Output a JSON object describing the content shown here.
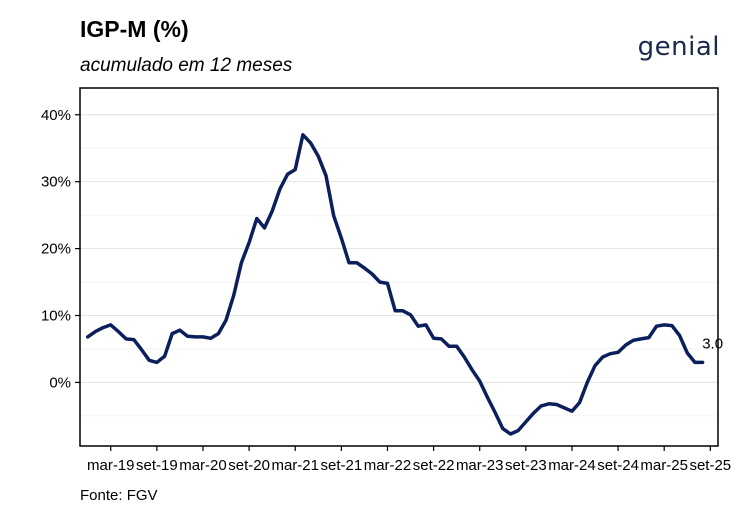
{
  "header": {
    "title": "IGP-M (%)",
    "subtitle": "acumulado em 12 meses",
    "logo_text": "genial"
  },
  "footer": {
    "source": "Fonte: FGV"
  },
  "chart_data": {
    "type": "line",
    "title": "IGP-M (%)",
    "subtitle": "acumulado em 12 meses",
    "xlabel": "",
    "ylabel": "",
    "ylim": [
      -9.5,
      44
    ],
    "yticks": [
      0,
      10,
      20,
      30,
      40
    ],
    "ytick_labels": [
      "0%",
      "10%",
      "20%",
      "30%",
      "40%"
    ],
    "xlim": [
      "2018-11",
      "2025-10"
    ],
    "xticks": [
      "2019-03",
      "2019-09",
      "2020-03",
      "2020-09",
      "2021-03",
      "2021-09",
      "2022-03",
      "2022-09",
      "2023-03",
      "2023-09",
      "2024-03",
      "2024-09",
      "2025-03",
      "2025-09"
    ],
    "xtick_labels": [
      "mar-19",
      "set-19",
      "mar-20",
      "set-20",
      "mar-21",
      "set-21",
      "mar-22",
      "set-22",
      "mar-23",
      "set-23",
      "mar-24",
      "set-24",
      "mar-25",
      "set-25"
    ],
    "grid": true,
    "line_color": "#0b1f5c",
    "series": [
      {
        "name": "",
        "x": [
          "2018-12",
          "2019-01",
          "2019-02",
          "2019-03",
          "2019-04",
          "2019-05",
          "2019-06",
          "2019-07",
          "2019-08",
          "2019-09",
          "2019-10",
          "2019-11",
          "2019-12",
          "2020-01",
          "2020-02",
          "2020-03",
          "2020-04",
          "2020-05",
          "2020-06",
          "2020-07",
          "2020-08",
          "2020-09",
          "2020-10",
          "2020-11",
          "2020-12",
          "2021-01",
          "2021-02",
          "2021-03",
          "2021-04",
          "2021-05",
          "2021-06",
          "2021-07",
          "2021-08",
          "2021-09",
          "2021-10",
          "2021-11",
          "2021-12",
          "2022-01",
          "2022-02",
          "2022-03",
          "2022-04",
          "2022-05",
          "2022-06",
          "2022-07",
          "2022-08",
          "2022-09",
          "2022-10",
          "2022-11",
          "2022-12",
          "2023-01",
          "2023-02",
          "2023-03",
          "2023-04",
          "2023-05",
          "2023-06",
          "2023-07",
          "2023-08",
          "2023-09",
          "2023-10",
          "2023-11",
          "2023-12",
          "2024-01",
          "2024-02",
          "2024-03",
          "2024-04",
          "2024-05",
          "2024-06",
          "2024-07",
          "2024-08",
          "2024-09",
          "2024-10",
          "2024-11",
          "2024-12",
          "2025-01",
          "2025-02",
          "2025-03",
          "2025-04",
          "2025-05",
          "2025-06",
          "2025-07",
          "2025-08"
        ],
        "values": [
          6.8,
          7.6,
          8.2,
          8.6,
          7.6,
          6.5,
          6.4,
          4.9,
          3.3,
          3.0,
          3.9,
          7.3,
          7.8,
          6.9,
          6.8,
          6.8,
          6.6,
          7.3,
          9.3,
          13.0,
          17.9,
          20.9,
          24.5,
          23.1,
          25.6,
          28.9,
          31.1,
          31.8,
          37.0,
          35.8,
          33.8,
          30.9,
          24.9,
          21.6,
          17.9,
          17.9,
          17.1,
          16.2,
          15.0,
          14.8,
          10.7,
          10.7,
          10.1,
          8.4,
          8.6,
          6.6,
          6.5,
          5.4,
          5.4,
          3.8,
          1.9,
          0.2,
          -2.2,
          -4.5,
          -6.9,
          -7.7,
          -7.2,
          -5.9,
          -4.6,
          -3.5,
          -3.2,
          -3.3,
          -3.8,
          -4.3,
          -3.0,
          0.0,
          2.5,
          3.8,
          4.3,
          4.5,
          5.6,
          6.3,
          6.5,
          6.7,
          8.4,
          8.6,
          8.5,
          7.0,
          4.4,
          3.0,
          3.0
        ]
      }
    ],
    "annotations": [
      {
        "x": "2025-08",
        "y": 3.0,
        "text": "3.0"
      }
    ]
  }
}
